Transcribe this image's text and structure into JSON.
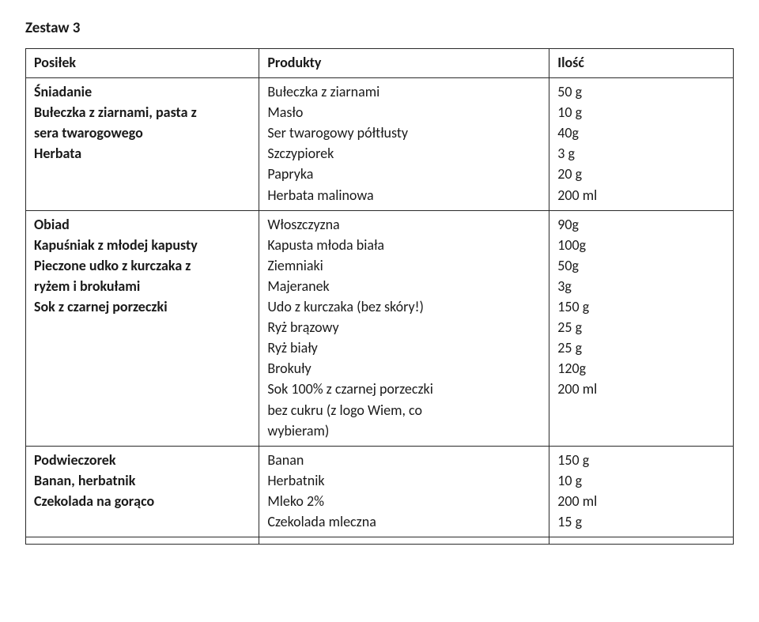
{
  "page": {
    "title": "Zestaw 3",
    "background_color": "#ffffff",
    "border_color": "#2a2a2a",
    "text_color": "#1a1a1a",
    "title_fontsize_pt": 14,
    "cell_fontsize_pt": 13
  },
  "table": {
    "columns": [
      "Posiłek",
      "Produkty",
      "Ilość"
    ],
    "column_widths_pct": [
      33,
      41,
      26
    ],
    "sections": [
      {
        "meal_heading": "Śniadanie",
        "meal_items": [
          "Bułeczka z ziarnami, pasta z",
          "sera twarogowego",
          "Herbata"
        ],
        "products": [
          "Bułeczka z ziarnami",
          "Masło",
          "Ser twarogowy półtłusty",
          "Szczypiorek",
          "Papryka",
          "Herbata malinowa"
        ],
        "amounts": [
          "50 g",
          "10 g",
          "40g",
          "3 g",
          "20 g",
          "200 ml"
        ]
      },
      {
        "meal_heading": "Obiad",
        "meal_items": [
          "Kapuśniak z młodej kapusty",
          "Pieczone udko z kurczaka z",
          "ryżem i brokułami",
          "Sok z czarnej porzeczki"
        ],
        "products": [
          "Włoszczyzna",
          "Kapusta młoda biała",
          "Ziemniaki",
          "Majeranek",
          "Udo z kurczaka (bez skóry!)",
          "Ryż brązowy",
          "Ryż biały",
          "Brokuły",
          "Sok 100% z czarnej porzeczki",
          "bez cukru (z logo Wiem, co",
          "wybieram)"
        ],
        "amounts": [
          "90g",
          "100g",
          "50g",
          "3g",
          "150 g",
          "25 g",
          "25 g",
          "120g",
          "200 ml"
        ]
      },
      {
        "meal_heading": "Podwieczorek",
        "meal_items": [
          "Banan, herbatnik",
          "Czekolada na gorąco"
        ],
        "products": [
          "Banan",
          "Herbatnik",
          "Mleko 2%",
          "Czekolada mleczna"
        ],
        "amounts": [
          "150 g",
          "10 g",
          "200 ml",
          "15 g"
        ]
      }
    ]
  }
}
